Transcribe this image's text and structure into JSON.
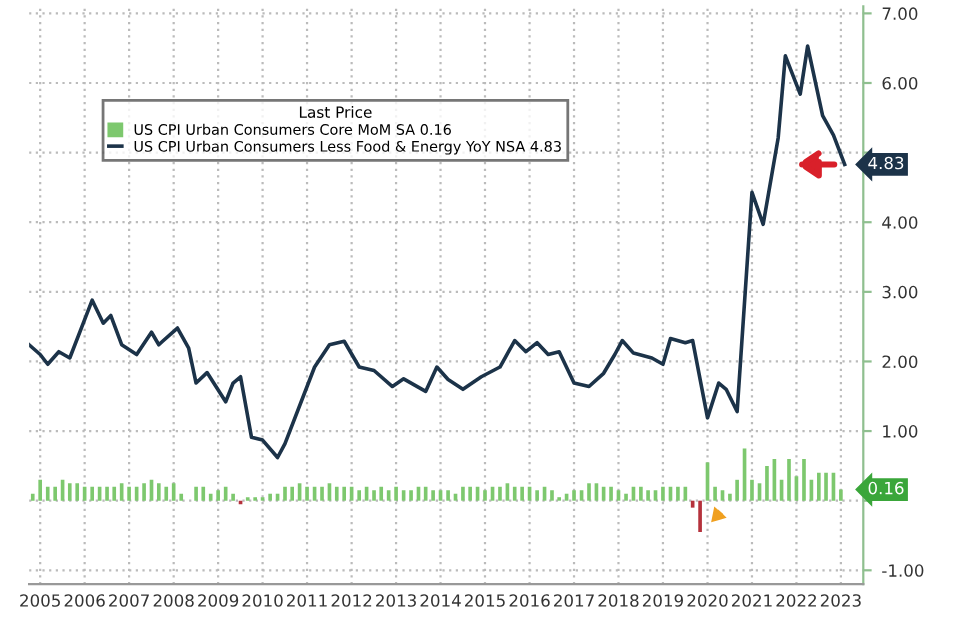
{
  "chart_data": {
    "type": "line",
    "legend_title": "Last Price",
    "legend": "top left",
    "grid": true,
    "line_style": "solid",
    "xlim": [
      "2005-04",
      "2024-01"
    ],
    "ylim": [
      -1.2,
      7.1
    ],
    "yticks": [
      {
        "value": -1,
        "label": "-1.00"
      },
      {
        "value": 0,
        "label": null
      },
      {
        "value": 1,
        "label": "1.00"
      },
      {
        "value": 2,
        "label": "2.00"
      },
      {
        "value": 3,
        "label": "3.00"
      },
      {
        "value": 4,
        "label": "4.00"
      },
      {
        "value": 5,
        "label": null
      },
      {
        "value": 6,
        "label": "6.00"
      },
      {
        "value": 7,
        "label": "7.00"
      }
    ],
    "xticks": [
      {
        "value": "2005-07",
        "label": "2005"
      },
      {
        "value": "2006-07",
        "label": "2006"
      },
      {
        "value": "2007-07",
        "label": "2007"
      },
      {
        "value": "2008-07",
        "label": "2008"
      },
      {
        "value": "2009-07",
        "label": "2009"
      },
      {
        "value": "2010-07",
        "label": "2010"
      },
      {
        "value": "2011-07",
        "label": "2011"
      },
      {
        "value": "2012-07",
        "label": "2012"
      },
      {
        "value": "2013-07",
        "label": "2013"
      },
      {
        "value": "2014-07",
        "label": "2014"
      },
      {
        "value": "2015-07",
        "label": "2015"
      },
      {
        "value": "2016-07",
        "label": "2016"
      },
      {
        "value": "2017-07",
        "label": "2017"
      },
      {
        "value": "2018-07",
        "label": "2018"
      },
      {
        "value": "2019-07",
        "label": "2019"
      },
      {
        "value": "2020-07",
        "label": "2020"
      },
      {
        "value": "2021-07",
        "label": "2021"
      },
      {
        "value": "2022-07",
        "label": "2022"
      },
      {
        "value": "2023-07",
        "label": "2023"
      }
    ],
    "annotations": [
      {
        "text": "4.83",
        "x": "2023-08",
        "y": 4.83
      },
      {
        "text": "0.16",
        "x": "2023-07",
        "y": 0.16
      }
    ],
    "series": [
      {
        "name": "US CPI Urban Consumers Core MoM SA 0.16",
        "type": "bar",
        "color": "#7dc86e",
        "x": [
          "2005-05",
          "2005-07",
          "2005-09",
          "2005-11",
          "2006-01",
          "2006-03",
          "2006-05",
          "2006-07",
          "2006-09",
          "2006-11",
          "2007-01",
          "2007-03",
          "2007-05",
          "2007-07",
          "2007-09",
          "2007-11",
          "2008-01",
          "2008-03",
          "2008-05",
          "2008-07",
          "2008-09",
          "2008-11",
          "2009-01",
          "2009-03",
          "2009-05",
          "2009-07",
          "2009-09",
          "2009-11",
          "2010-03",
          "2010-05",
          "2010-07",
          "2010-09",
          "2010-11",
          "2011-01",
          "2011-03",
          "2011-05",
          "2011-07",
          "2011-09",
          "2011-11",
          "2012-01",
          "2012-03",
          "2012-05",
          "2012-07",
          "2012-09",
          "2012-11",
          "2013-01",
          "2013-03",
          "2013-05",
          "2013-07",
          "2013-09",
          "2013-11",
          "2014-01",
          "2014-03",
          "2014-05",
          "2014-07",
          "2014-09",
          "2014-11",
          "2015-01",
          "2015-03",
          "2015-05",
          "2015-07",
          "2015-09",
          "2015-11",
          "2016-01",
          "2016-03",
          "2016-05",
          "2016-07",
          "2016-09",
          "2016-11",
          "2017-01",
          "2017-03",
          "2017-05",
          "2017-07",
          "2017-09",
          "2017-11",
          "2018-01",
          "2018-03",
          "2018-05",
          "2018-07",
          "2018-09",
          "2018-11",
          "2019-01",
          "2019-03",
          "2019-05",
          "2019-07",
          "2019-09",
          "2019-11",
          "2020-01",
          "2020-07",
          "2020-09",
          "2020-11",
          "2021-01",
          "2021-03",
          "2021-05",
          "2021-07",
          "2021-09",
          "2021-11",
          "2022-01",
          "2022-03",
          "2022-05",
          "2022-07",
          "2022-09",
          "2022-11",
          "2023-01",
          "2023-03",
          "2023-05",
          "2023-07"
        ],
        "values": [
          0.1,
          0.3,
          0.2,
          0.2,
          0.3,
          0.25,
          0.25,
          0.2,
          0.2,
          0.2,
          0.2,
          0.2,
          0.25,
          0.2,
          0.2,
          0.25,
          0.3,
          0.25,
          0.2,
          0.25,
          0.1,
          0.0,
          0.2,
          0.2,
          0.1,
          0.15,
          0.2,
          0.1,
          0.05,
          0.05,
          0.05,
          0.1,
          0.1,
          0.2,
          0.2,
          0.25,
          0.2,
          0.2,
          0.2,
          0.25,
          0.2,
          0.2,
          0.2,
          0.15,
          0.2,
          0.15,
          0.2,
          0.15,
          0.2,
          0.15,
          0.15,
          0.2,
          0.2,
          0.15,
          0.15,
          0.15,
          0.1,
          0.2,
          0.2,
          0.2,
          0.15,
          0.2,
          0.2,
          0.25,
          0.2,
          0.2,
          0.2,
          0.15,
          0.2,
          0.15,
          0.05,
          0.1,
          0.15,
          0.15,
          0.25,
          0.25,
          0.2,
          0.2,
          0.15,
          0.1,
          0.2,
          0.2,
          0.15,
          0.15,
          0.2,
          0.2,
          0.2,
          0.2,
          0.55,
          0.2,
          0.15,
          0.1,
          0.3,
          0.75,
          0.3,
          0.25,
          0.5,
          0.6,
          0.3,
          0.6,
          0.35,
          0.6,
          0.3,
          0.4,
          0.4,
          0.4,
          0.16
        ]
      },
      {
        "type": "bar",
        "color": "#b5323c",
        "x": [
          "2010-01",
          "2020-03",
          "2020-05"
        ],
        "values": [
          -0.05,
          -0.1,
          -0.45
        ]
      },
      {
        "name": "US CPI Urban Consumers Less Food & Energy YoY NSA 4.83",
        "color": "#1c3349",
        "x": [
          "2005-04",
          "2005-07",
          "2005-09",
          "2005-12",
          "2006-03",
          "2006-07",
          "2006-09",
          "2006-12",
          "2007-02",
          "2007-05",
          "2007-09",
          "2008-01",
          "2008-03",
          "2008-04",
          "2008-08",
          "2008-11",
          "2009-01",
          "2009-04",
          "2009-09",
          "2009-11",
          "2010-01",
          "2010-04",
          "2010-07",
          "2010-11",
          "2011-01",
          "2011-09",
          "2012-01",
          "2012-05",
          "2012-09",
          "2013-01",
          "2013-06",
          "2013-09",
          "2014-03",
          "2014-06",
          "2014-09",
          "2015-01",
          "2015-06",
          "2015-11",
          "2016-03",
          "2016-06",
          "2016-09",
          "2016-12",
          "2017-03",
          "2017-07",
          "2017-11",
          "2018-03",
          "2018-06",
          "2018-08",
          "2018-11",
          "2019-04",
          "2019-07",
          "2019-09",
          "2020-01",
          "2020-03",
          "2020-07",
          "2020-10",
          "2020-12",
          "2021-03",
          "2021-07",
          "2021-10",
          "2022-02",
          "2022-04",
          "2022-08",
          "2022-10",
          "2023-02",
          "2023-05",
          "2023-08"
        ],
        "values": [
          2.24,
          2.1,
          1.96,
          2.14,
          2.05,
          2.6,
          2.88,
          2.55,
          2.66,
          2.24,
          2.1,
          2.42,
          2.24,
          2.29,
          2.48,
          2.19,
          1.69,
          1.84,
          1.42,
          1.69,
          1.78,
          0.91,
          0.87,
          0.62,
          0.82,
          1.92,
          2.24,
          2.29,
          1.92,
          1.87,
          1.64,
          1.75,
          1.57,
          1.92,
          1.74,
          1.6,
          1.78,
          1.92,
          2.3,
          2.14,
          2.27,
          2.1,
          2.14,
          1.69,
          1.64,
          1.83,
          2.1,
          2.3,
          2.12,
          2.05,
          1.96,
          2.33,
          2.27,
          2.3,
          1.19,
          1.69,
          1.6,
          1.28,
          4.43,
          3.97,
          5.21,
          6.39,
          5.84,
          6.53,
          5.53,
          5.25,
          4.83
        ]
      }
    ]
  }
}
